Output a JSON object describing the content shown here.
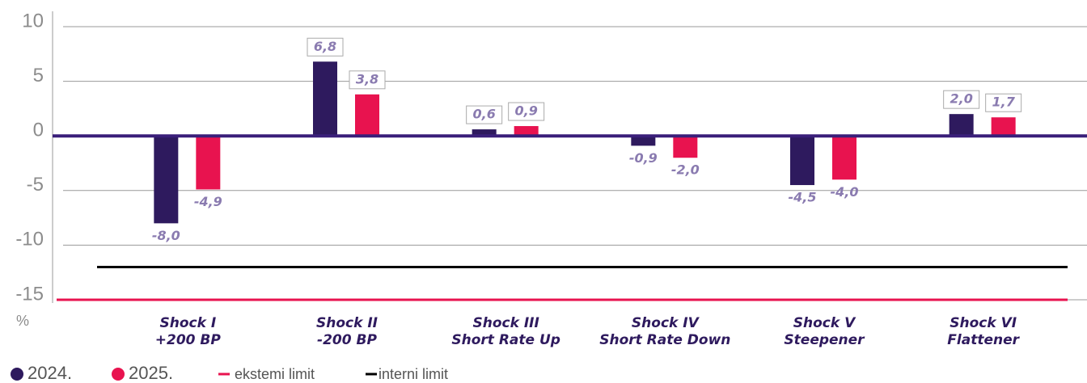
{
  "chart_data": {
    "type": "bar",
    "categories": [
      [
        "Shock I",
        "+200 BP"
      ],
      [
        "Shock II",
        "-200 BP"
      ],
      [
        "Shock III",
        "Short Rate Up"
      ],
      [
        "Shock IV",
        "Short Rate Down"
      ],
      [
        "Shock V",
        "Steepener"
      ],
      [
        "Shock VI",
        "Flattener"
      ]
    ],
    "series": [
      {
        "name": "2024.",
        "color": "#2e1a5e",
        "values": [
          -8.0,
          6.8,
          0.6,
          -0.9,
          -4.5,
          2.0
        ],
        "value_labels": [
          "-8,0",
          "6,8",
          "0,6",
          "-0,9",
          "-4,5",
          "2,0"
        ]
      },
      {
        "name": "2025.",
        "color": "#e8134f",
        "values": [
          -4.9,
          3.8,
          0.9,
          -2.0,
          -4.0,
          1.7
        ],
        "value_labels": [
          "-4,9",
          "3,8",
          "0,9",
          "-2,0",
          "-4,0",
          "1,7"
        ]
      }
    ],
    "reference_lines": [
      {
        "name": "ekstemi limit",
        "value": -15,
        "color": "#e8134f"
      },
      {
        "name": "interni limit",
        "value": -12,
        "color": "#000000"
      }
    ],
    "y_label": "%",
    "ylim": [
      -15,
      10
    ],
    "yticks": [
      10,
      5,
      0,
      -5,
      -10,
      -15
    ],
    "grid": true
  }
}
